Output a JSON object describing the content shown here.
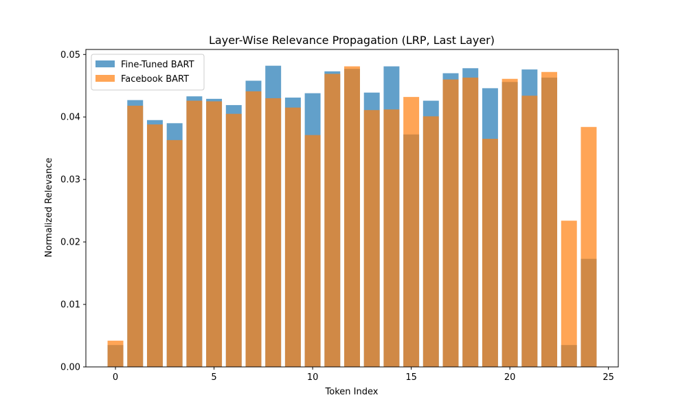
{
  "chart_data": {
    "type": "bar",
    "title": "Layer-Wise Relevance Propagation (LRP, Last Layer)",
    "xlabel": "Token Index",
    "ylabel": "Normalized Relevance",
    "xlim": [
      -1.5,
      25.5
    ],
    "ylim": [
      0,
      0.0508
    ],
    "xticks": [
      0,
      5,
      10,
      15,
      20,
      25
    ],
    "yticks": [
      0.0,
      0.01,
      0.02,
      0.03,
      0.04,
      0.05
    ],
    "ytick_labels": [
      "0.00",
      "0.01",
      "0.02",
      "0.03",
      "0.04",
      "0.05"
    ],
    "x": [
      0,
      1,
      2,
      3,
      4,
      5,
      6,
      7,
      8,
      9,
      10,
      11,
      12,
      13,
      14,
      15,
      16,
      17,
      18,
      19,
      20,
      21,
      22,
      23,
      24
    ],
    "bar_width": 0.8,
    "series": [
      {
        "name": "Fine-Tuned BART",
        "color": "#1f77b4",
        "alpha": 0.7,
        "values": [
          0.0035,
          0.0427,
          0.0395,
          0.039,
          0.0433,
          0.0429,
          0.0419,
          0.0458,
          0.0482,
          0.0431,
          0.0438,
          0.0473,
          0.0477,
          0.0439,
          0.0481,
          0.0372,
          0.0426,
          0.047,
          0.0478,
          0.0446,
          0.0456,
          0.0476,
          0.0463,
          0.0035,
          0.0173
        ]
      },
      {
        "name": "Facebook BART",
        "color": "#ff7f0e",
        "alpha": 0.7,
        "values": [
          0.0042,
          0.0418,
          0.0388,
          0.0363,
          0.0426,
          0.0425,
          0.0405,
          0.0441,
          0.043,
          0.0415,
          0.0371,
          0.0469,
          0.0481,
          0.0411,
          0.0412,
          0.0432,
          0.0401,
          0.046,
          0.0463,
          0.0365,
          0.0461,
          0.0434,
          0.0472,
          0.0234,
          0.0384
        ]
      }
    ],
    "legend_position": "upper-left",
    "grid": false
  }
}
